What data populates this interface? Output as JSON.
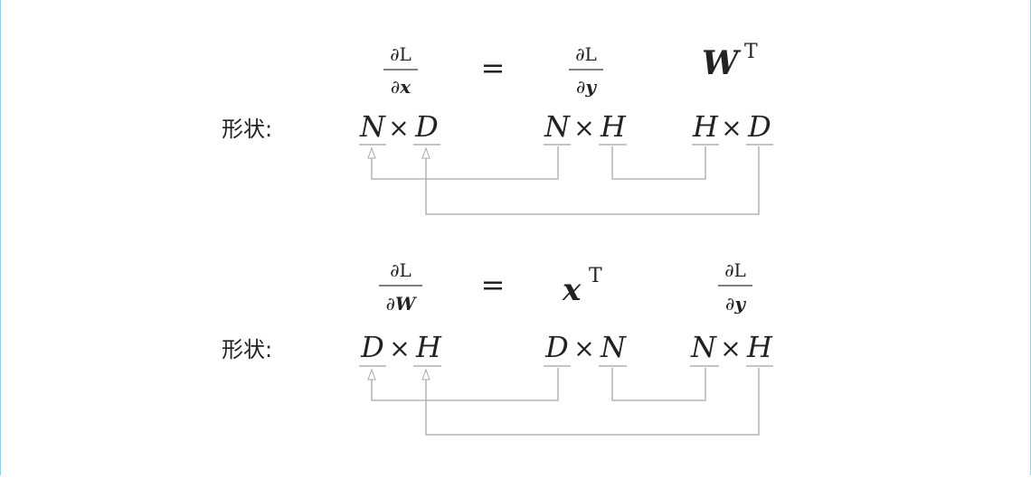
{
  "shape_label": "形状:",
  "sections": [
    {
      "lhs": {
        "num": "∂L",
        "den_prefix": "∂",
        "den_var": "x"
      },
      "eq": "=",
      "term1": {
        "num": "∂L",
        "den_prefix": "∂",
        "den_var": "y"
      },
      "term2": {
        "var": "W",
        "sup": "T"
      },
      "shapes": [
        [
          "N",
          "D"
        ],
        [
          "N",
          "H"
        ],
        [
          "H",
          "D"
        ]
      ]
    },
    {
      "lhs": {
        "num": "∂L",
        "den_prefix": "∂",
        "den_var": "W"
      },
      "eq": "=",
      "term1": {
        "var": "x",
        "sup": "T"
      },
      "term2": {
        "num": "∂L",
        "den_prefix": "∂",
        "den_var": "y"
      },
      "shapes": [
        [
          "D",
          "H"
        ],
        [
          "D",
          "N"
        ],
        [
          "N",
          "H"
        ]
      ]
    }
  ],
  "times": "×"
}
